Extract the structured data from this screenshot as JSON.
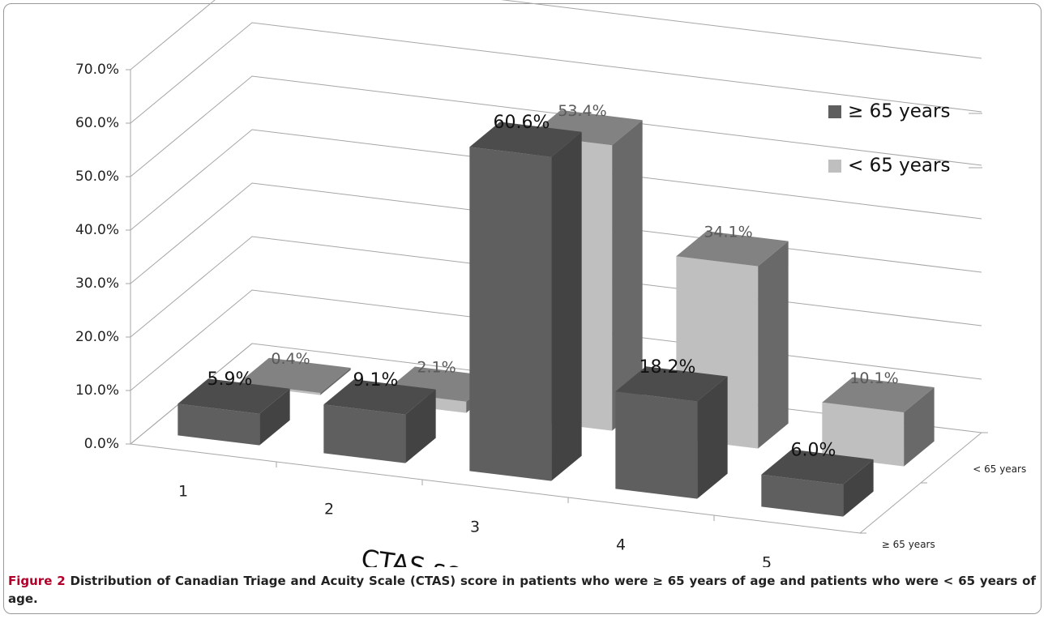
{
  "chart_data": {
    "type": "bar3d",
    "categories": [
      "1",
      "2",
      "3",
      "4",
      "5"
    ],
    "xlabel": "CTAS scores",
    "ylim": [
      0,
      70
    ],
    "yticks": [
      {
        "value": 0,
        "label": "0.0%"
      },
      {
        "value": 10,
        "label": "10.0%"
      },
      {
        "value": 20,
        "label": "20.0%"
      },
      {
        "value": 30,
        "label": "30.0%"
      },
      {
        "value": 40,
        "label": "40.0%"
      },
      {
        "value": 50,
        "label": "50.0%"
      },
      {
        "value": 60,
        "label": "60.0%"
      },
      {
        "value": 70,
        "label": "70.0%"
      }
    ],
    "grid": true,
    "legend": "upper right",
    "series": [
      {
        "name": "≥ 65 years",
        "color": "#5f5f5f",
        "values": [
          5.9,
          9.1,
          60.6,
          18.2,
          6.0
        ],
        "value_labels": [
          "5.9%",
          "9.1%",
          "60.6%",
          "18.2%",
          "6.0%"
        ]
      },
      {
        "name": "< 65 years",
        "color": "#bfbfbf",
        "values": [
          0.4,
          2.1,
          53.4,
          34.1,
          10.1
        ],
        "value_labels": [
          "0.4%",
          "2.1%",
          "53.4%",
          "34.1%",
          "10.1%"
        ]
      }
    ]
  },
  "caption": {
    "label": "Figure 2",
    "text": "Distribution of Canadian Triage and Acuity Scale (CTAS) score in patients who were ≥ 65 years of age and patients who were < 65 years of age."
  }
}
